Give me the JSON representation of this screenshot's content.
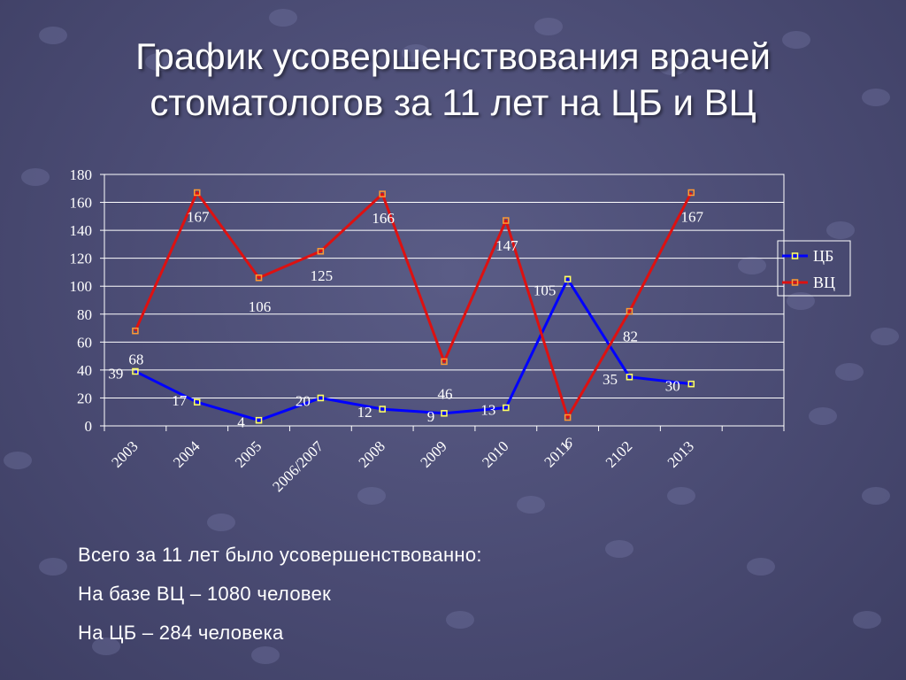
{
  "slide": {
    "title_line1": "График усовершенствования врачей",
    "title_line2": "стоматологов за 11 лет на ЦБ и ВЦ",
    "summary": [
      "Всего за 11 лет было усовершенствованно:",
      "На базе ВЦ – 1080 человек",
      "На ЦБ – 284 человека"
    ]
  },
  "colors": {
    "background": "#4a4b73",
    "series_cb": "#0000ff",
    "series_vc": "#dd1111",
    "grid": "#ffffff",
    "marker_cb": "#ffff66",
    "marker_vc": "#ff9933"
  },
  "chart_data": {
    "type": "line",
    "categories": [
      "2003",
      "2004",
      "2005",
      "2006/2007",
      "2008",
      "2009",
      "2010",
      "2011",
      "2102",
      "2013"
    ],
    "series": [
      {
        "name": "ЦБ",
        "values": [
          39,
          17,
          4,
          20,
          12,
          9,
          13,
          105,
          35,
          30
        ]
      },
      {
        "name": "ВЦ",
        "values": [
          68,
          167,
          106,
          125,
          166,
          46,
          147,
          6,
          82,
          167
        ]
      }
    ],
    "ylim": [
      0,
      180
    ],
    "yticks": [
      0,
      20,
      40,
      60,
      80,
      100,
      120,
      140,
      160,
      180
    ],
    "grid": true,
    "legend": "right",
    "title": "",
    "xlabel": "",
    "ylabel": ""
  }
}
